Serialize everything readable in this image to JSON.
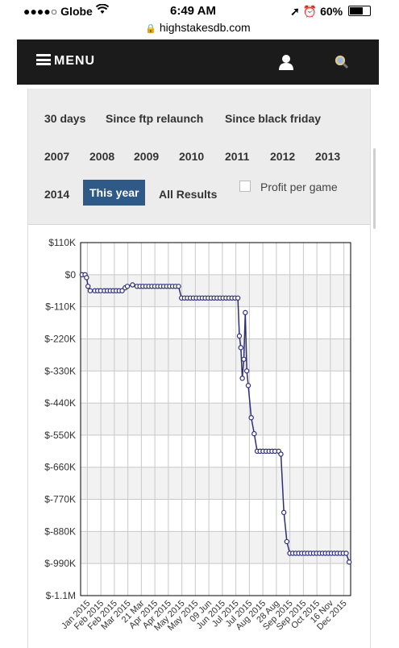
{
  "status_bar": {
    "carrier": "●●●●○ Globe",
    "time": "6:49 AM",
    "battery": "60%"
  },
  "browser": {
    "url": "highstakesdb.com"
  },
  "nav": {
    "menu_label": "MENU"
  },
  "filters": {
    "row1": [
      "30 days",
      "Since ftp relaunch",
      "Since black friday"
    ],
    "row2": [
      "2007",
      "2008",
      "2009",
      "2010",
      "2011",
      "2012",
      "2013"
    ],
    "row3": [
      "2014",
      "This year",
      "All Results"
    ],
    "active": "This year",
    "profit_per_game_label": "Profit per game",
    "profit_per_game_checked": false
  },
  "colors": {
    "nav_bg": "#1b1b1b",
    "active_tab": "#2f5a88",
    "series": "#2e2e7a",
    "panel_bg": "#ececec"
  },
  "chart_data": {
    "type": "line",
    "y_ticks": [
      "$110K",
      "$0",
      "$-110K",
      "$-220K",
      "$-330K",
      "$-440K",
      "$-550K",
      "$-660K",
      "$-770K",
      "$-880K",
      "$-990K",
      "$-1.1M"
    ],
    "ylim": [
      -1100000,
      110000
    ],
    "x_tick_labels": [
      "Jan 2015",
      "Feb 2015",
      "Feb 2015",
      "Mar 2015",
      "21 Mar",
      "Apr 2015",
      "Apr 2015",
      "May 2015",
      "May 2015",
      "09 Jun",
      "Jun 2015",
      "Jul 2015",
      "Jul 2015",
      "Aug 2015",
      "28 Aug",
      "Sep 2015",
      "Sep 2015",
      "Oct 2015",
      "16 Nov",
      "Dec 2015"
    ],
    "xlim": [
      "2015-01-01",
      "2015-12-31"
    ],
    "grid": true,
    "series": [
      {
        "x": [
          "2015-01-03",
          "2015-01-07",
          "2015-01-09",
          "2015-01-11",
          "2015-01-14",
          "2015-01-20",
          "2015-01-24",
          "2015-01-28",
          "2015-02-02",
          "2015-02-06",
          "2015-02-10",
          "2015-02-14",
          "2015-02-18",
          "2015-02-22",
          "2015-02-26",
          "2015-03-02",
          "2015-03-05",
          "2015-03-12",
          "2015-03-18",
          "2015-03-22",
          "2015-03-26",
          "2015-03-30",
          "2015-04-03",
          "2015-04-07",
          "2015-04-11",
          "2015-04-15",
          "2015-04-19",
          "2015-04-23",
          "2015-04-27",
          "2015-05-01",
          "2015-05-05",
          "2015-05-09",
          "2015-05-13",
          "2015-05-17",
          "2015-05-21",
          "2015-05-25",
          "2015-05-29",
          "2015-06-02",
          "2015-06-06",
          "2015-06-10",
          "2015-06-14",
          "2015-06-18",
          "2015-06-22",
          "2015-06-26",
          "2015-06-30",
          "2015-07-04",
          "2015-07-08",
          "2015-07-12",
          "2015-07-16",
          "2015-07-20",
          "2015-07-24",
          "2015-07-28",
          "2015-08-01",
          "2015-08-03",
          "2015-08-05",
          "2015-08-07",
          "2015-08-09",
          "2015-08-11",
          "2015-08-13",
          "2015-08-15",
          "2015-08-19",
          "2015-08-23",
          "2015-08-27",
          "2015-08-31",
          "2015-09-04",
          "2015-09-08",
          "2015-09-12",
          "2015-09-16",
          "2015-09-20",
          "2015-09-25",
          "2015-09-28",
          "2015-10-02",
          "2015-10-06",
          "2015-10-10",
          "2015-10-14",
          "2015-10-18",
          "2015-10-22",
          "2015-10-26",
          "2015-10-30",
          "2015-11-03",
          "2015-11-07",
          "2015-11-11",
          "2015-11-15",
          "2015-11-19",
          "2015-11-23",
          "2015-11-27",
          "2015-12-01",
          "2015-12-05",
          "2015-12-09",
          "2015-12-13",
          "2015-12-17",
          "2015-12-21",
          "2015-12-25",
          "2015-12-29"
        ],
        "y": [
          0,
          0,
          -10000,
          -40000,
          -55000,
          -55000,
          -55000,
          -55000,
          -55000,
          -55000,
          -55000,
          -55000,
          -55000,
          -55000,
          -55000,
          -45000,
          -40000,
          -35000,
          -40000,
          -40000,
          -40000,
          -40000,
          -40000,
          -40000,
          -40000,
          -40000,
          -40000,
          -40000,
          -40000,
          -40000,
          -40000,
          -40000,
          -40000,
          -80000,
          -80000,
          -80000,
          -80000,
          -80000,
          -80000,
          -80000,
          -80000,
          -80000,
          -80000,
          -80000,
          -80000,
          -80000,
          -80000,
          -80000,
          -80000,
          -80000,
          -80000,
          -80000,
          -80000,
          -210000,
          -250000,
          -355000,
          -290000,
          -130000,
          -330000,
          -380000,
          -490000,
          -545000,
          -605000,
          -605000,
          -605000,
          -605000,
          -605000,
          -605000,
          -605000,
          -605000,
          -615000,
          -815000,
          -915000,
          -955000,
          -955000,
          -955000,
          -955000,
          -955000,
          -955000,
          -955000,
          -955000,
          -955000,
          -955000,
          -955000,
          -955000,
          -955000,
          -955000,
          -955000,
          -955000,
          -955000,
          -955000,
          -955000,
          -955000,
          -985000
        ]
      }
    ]
  }
}
